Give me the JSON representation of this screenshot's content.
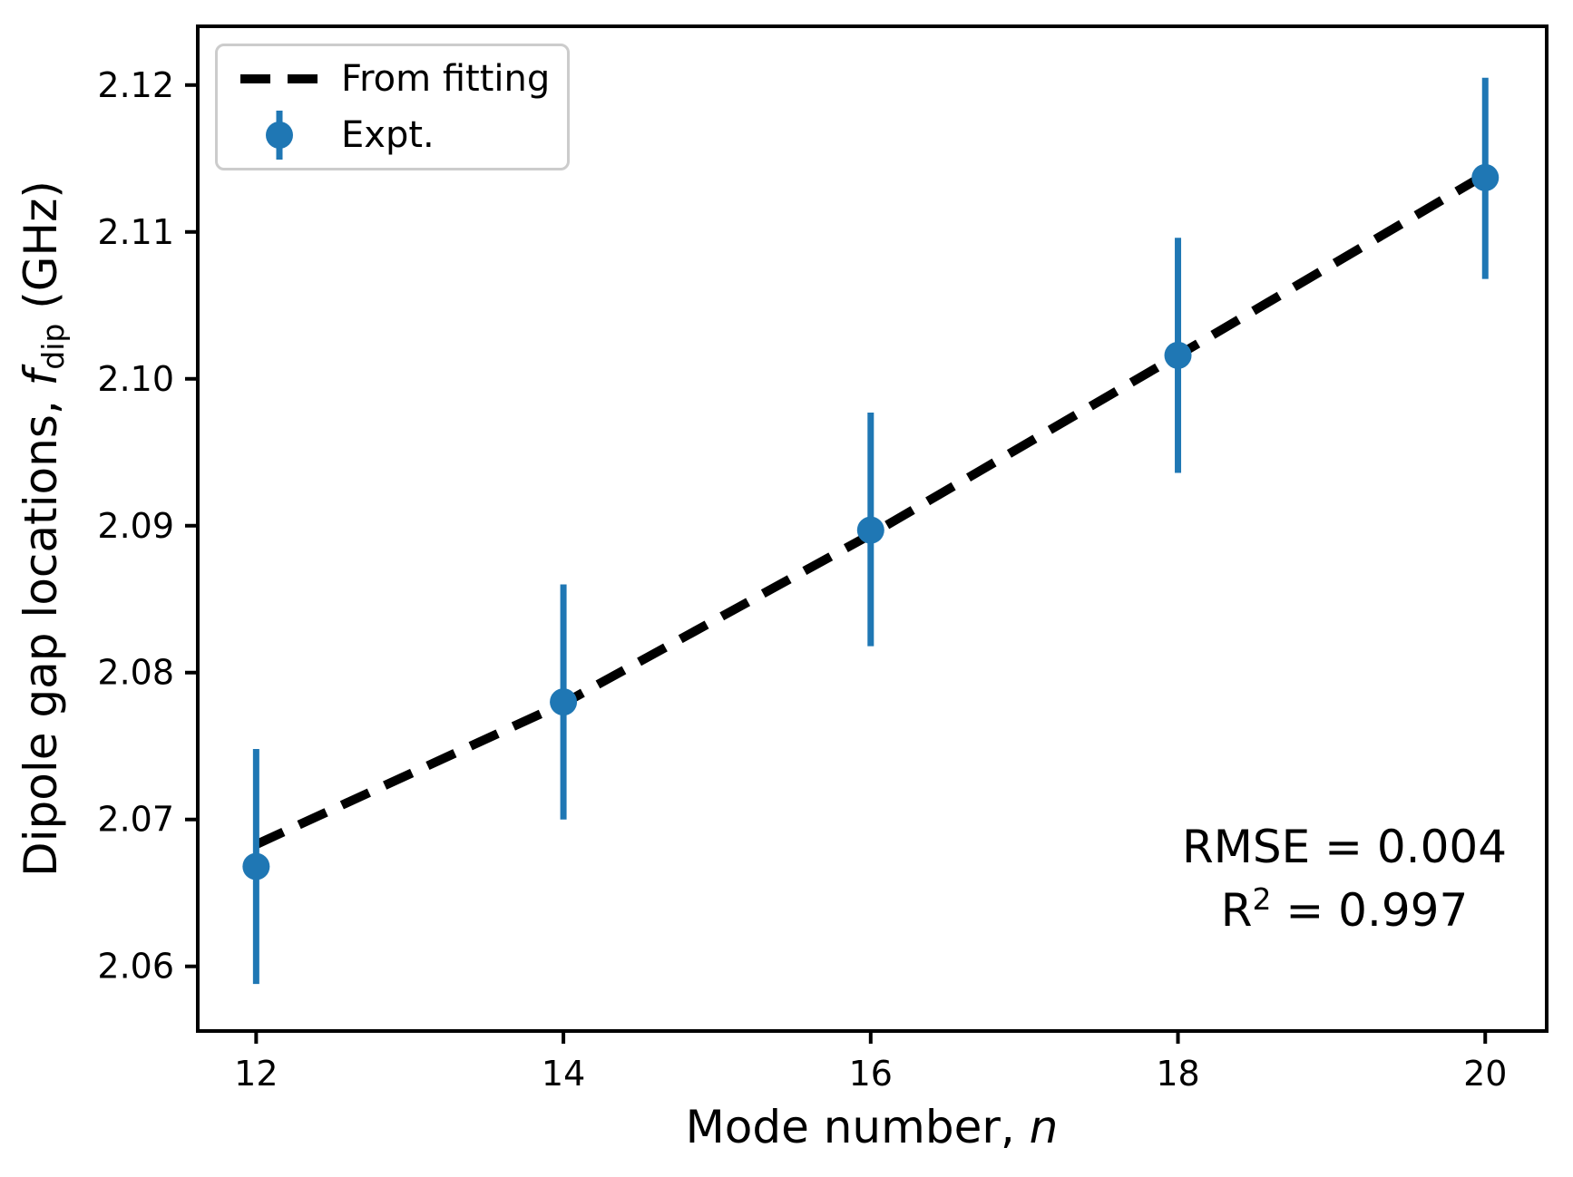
{
  "colors": {
    "accent_blue": "#1f77b4",
    "line_black": "#000000",
    "legend_border": "#cccccc"
  },
  "chart_data": {
    "type": "scatter",
    "title": "",
    "xlabel_prefix": "Mode number, ",
    "xlabel_var": "n",
    "ylabel_prefix": "Dipole gap locations, ",
    "ylabel_var": "f",
    "ylabel_sub": "dip",
    "ylabel_suffix": " (GHz)",
    "xlim": [
      11.62,
      20.4
    ],
    "ylim": [
      2.0556,
      2.124
    ],
    "x_ticks": [
      12,
      14,
      16,
      18,
      20
    ],
    "x_tick_labels": [
      "12",
      "14",
      "16",
      "18",
      "20"
    ],
    "y_ticks": [
      2.06,
      2.07,
      2.08,
      2.09,
      2.1,
      2.11,
      2.12
    ],
    "y_tick_labels": [
      "2.06",
      "2.07",
      "2.08",
      "2.09",
      "2.10",
      "2.11",
      "2.12"
    ],
    "grid": false,
    "legend_position": "upper left",
    "series": [
      {
        "name": "From fitting",
        "kind": "line",
        "style": "dashed",
        "color": "#000000",
        "x": [
          12,
          14,
          16,
          18,
          20
        ],
        "y": [
          2.0683,
          2.0779,
          2.0894,
          2.1016,
          2.1139
        ]
      },
      {
        "name": "Expt.",
        "kind": "scatter_errorbar",
        "color": "#1f77b4",
        "x": [
          12,
          14,
          16,
          18,
          20
        ],
        "y": [
          2.0668,
          2.078,
          2.0897,
          2.1016,
          2.1137
        ],
        "y_err_low": [
          2.0588,
          2.07,
          2.0818,
          2.0936,
          2.1068
        ],
        "y_err_high": [
          2.0748,
          2.086,
          2.0977,
          2.1096,
          2.1205
        ]
      }
    ],
    "annotation": {
      "line1": "RMSE = 0.004",
      "line2_base": "R",
      "line2_sup": "2",
      "line2_rest": " = 0.997"
    }
  }
}
